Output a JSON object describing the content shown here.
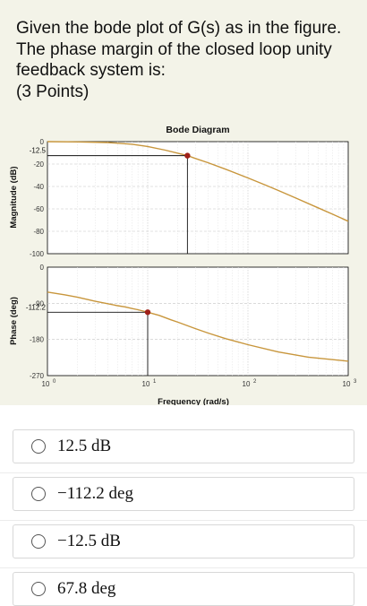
{
  "question": {
    "lines": [
      "Given the bode plot of G(s) as in the figure.",
      "The phase margin of the closed loop unity",
      "feedback system is:",
      "(3 Points)"
    ]
  },
  "options": [
    {
      "label": "12.5 dB"
    },
    {
      "label": "−112.2 deg"
    },
    {
      "label": "−12.5 dB"
    },
    {
      "label": "67.8 deg"
    }
  ],
  "chart_data": {
    "type": "line",
    "title": "Bode Diagram",
    "xlabel": "Frequency (rad/s)",
    "x_scale": "log",
    "xlim": [
      1,
      1000
    ],
    "x_ticks": [
      1,
      10,
      100,
      1000
    ],
    "x_tick_labels": [
      "10",
      "10",
      "10",
      "10"
    ],
    "x_tick_exponents": [
      "0",
      "1",
      "2",
      "3"
    ],
    "magnitude": {
      "ylabel": "Magnitude (dB)",
      "ylim": [
        -100,
        0
      ],
      "y_ticks": [
        0,
        -20,
        -40,
        -60,
        -80,
        -100
      ],
      "y_tick_labels": [
        "0",
        "-20",
        "-40",
        "-60",
        "-80",
        "-100"
      ],
      "marker": {
        "x": 24.9,
        "y": -12.5,
        "label": "-12.5"
      },
      "series": [
        {
          "x": [
            1,
            2,
            4,
            7,
            10,
            15,
            20,
            24.9,
            30,
            40,
            60,
            100,
            150,
            200,
            300,
            500,
            700,
            1000
          ],
          "y": [
            0,
            -0.2,
            -0.8,
            -2.3,
            -4.3,
            -7.6,
            -10.3,
            -12.5,
            -15.0,
            -18.8,
            -24.6,
            -32.4,
            -38.8,
            -43.5,
            -50.3,
            -59.0,
            -64.8,
            -71.0
          ]
        }
      ]
    },
    "phase": {
      "ylabel": "Phase (deg)",
      "ylim": [
        -270,
        0
      ],
      "y_ticks": [
        0,
        -90,
        -180,
        -270
      ],
      "y_tick_labels": [
        "0",
        "-90",
        "-180",
        "-270"
      ],
      "marker": {
        "x": 10,
        "y": -112.2,
        "label": "-112.2"
      },
      "series": [
        {
          "x": [
            1,
            1.5,
            2,
            3,
            4,
            5,
            6,
            7,
            8,
            10,
            13,
            17,
            20,
            30,
            40,
            60,
            100,
            200,
            400,
            1000
          ],
          "y": [
            -62,
            -69,
            -75,
            -85,
            -91,
            -96,
            -99,
            -103,
            -106,
            -112.2,
            -120,
            -131,
            -137,
            -153,
            -164,
            -178,
            -193,
            -211,
            -224,
            -234
          ]
        }
      ]
    },
    "grid": true,
    "line_color": "#c8963c",
    "marker_color": "#a02018"
  }
}
